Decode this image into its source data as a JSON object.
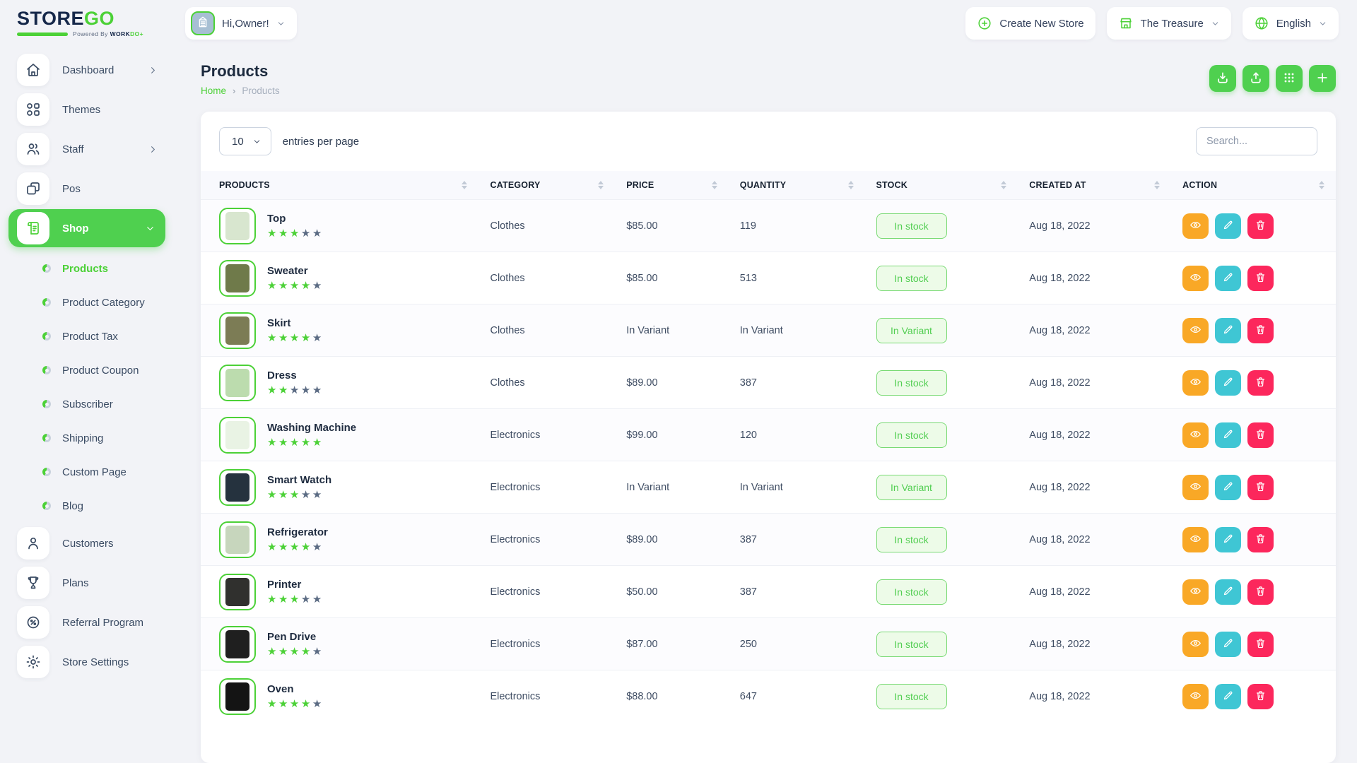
{
  "brand": {
    "logo_primary": "STORE",
    "logo_secondary": "GO",
    "powered_by": "Powered By ",
    "powered_brand_primary": "WORK",
    "powered_brand_secondary": "DO+"
  },
  "header": {
    "greeting": "Hi,Owner!",
    "create_new_store_label": "Create New Store",
    "store_name": "The Treasure",
    "language_label": "English"
  },
  "sidebar": {
    "items_top": [
      {
        "label": "Dashboard",
        "icon": "home-icon",
        "chevron": "right",
        "active": false
      },
      {
        "label": "Themes",
        "icon": "themes-icon",
        "chevron": null,
        "active": false
      },
      {
        "label": "Staff",
        "icon": "staff-icon",
        "chevron": "right",
        "active": false
      },
      {
        "label": "Pos",
        "icon": "pos-icon",
        "chevron": null,
        "active": false
      },
      {
        "label": "Shop",
        "icon": "shop-icon",
        "chevron": "down",
        "active": true,
        "expanded": true
      }
    ],
    "shop_children": [
      {
        "label": "Products",
        "active": true
      },
      {
        "label": "Product Category",
        "active": false
      },
      {
        "label": "Product Tax",
        "active": false
      },
      {
        "label": "Product Coupon",
        "active": false
      },
      {
        "label": "Subscriber",
        "active": false
      },
      {
        "label": "Shipping",
        "active": false
      },
      {
        "label": "Custom Page",
        "active": false
      },
      {
        "label": "Blog",
        "active": false
      }
    ],
    "items_bottom": [
      {
        "label": "Customers",
        "icon": "customers-icon"
      },
      {
        "label": "Plans",
        "icon": "plans-icon"
      },
      {
        "label": "Referral Program",
        "icon": "referral-icon"
      },
      {
        "label": "Store Settings",
        "icon": "gear-icon"
      }
    ]
  },
  "page": {
    "title": "Products",
    "breadcrumb_home": "Home",
    "breadcrumb_current": "Products"
  },
  "toolbar": {
    "buttons": [
      {
        "name": "export-button",
        "icon": "download-icon"
      },
      {
        "name": "import-button",
        "icon": "upload-icon"
      },
      {
        "name": "grid-view-button",
        "icon": "grid-icon"
      },
      {
        "name": "add-product-button",
        "icon": "plus-icon"
      }
    ]
  },
  "controls": {
    "entries_value": "10",
    "entries_label": "entries per page",
    "search_placeholder": "Search..."
  },
  "table": {
    "columns": [
      "PRODUCTS",
      "CATEGORY",
      "PRICE",
      "QUANTITY",
      "STOCK",
      "CREATED AT",
      "ACTION"
    ],
    "rows": [
      {
        "name": "Top",
        "rating": 3,
        "category": "Clothes",
        "price": "$85.00",
        "quantity": "119",
        "stock": "In stock",
        "created_at": "Aug 18, 2022",
        "thumb_color": "#d8e6cf"
      },
      {
        "name": "Sweater",
        "rating": 4,
        "category": "Clothes",
        "price": "$85.00",
        "quantity": "513",
        "stock": "In stock",
        "created_at": "Aug 18, 2022",
        "thumb_color": "#6f7a4a"
      },
      {
        "name": "Skirt",
        "rating": 4,
        "category": "Clothes",
        "price": "In Variant",
        "quantity": "In Variant",
        "stock": "In Variant",
        "created_at": "Aug 18, 2022",
        "thumb_color": "#7c7c55"
      },
      {
        "name": "Dress",
        "rating": 2,
        "category": "Clothes",
        "price": "$89.00",
        "quantity": "387",
        "stock": "In stock",
        "created_at": "Aug 18, 2022",
        "thumb_color": "#bcdcae"
      },
      {
        "name": "Washing Machine",
        "rating": 5,
        "category": "Electronics",
        "price": "$99.00",
        "quantity": "120",
        "stock": "In stock",
        "created_at": "Aug 18, 2022",
        "thumb_color": "#e9f3e4"
      },
      {
        "name": "Smart Watch",
        "rating": 3,
        "category": "Electronics",
        "price": "In Variant",
        "quantity": "In Variant",
        "stock": "In Variant",
        "created_at": "Aug 18, 2022",
        "thumb_color": "#25323e"
      },
      {
        "name": "Refrigerator",
        "rating": 4,
        "category": "Electronics",
        "price": "$89.00",
        "quantity": "387",
        "stock": "In stock",
        "created_at": "Aug 18, 2022",
        "thumb_color": "#c7d6bd"
      },
      {
        "name": "Printer",
        "rating": 3,
        "category": "Electronics",
        "price": "$50.00",
        "quantity": "387",
        "stock": "In stock",
        "created_at": "Aug 18, 2022",
        "thumb_color": "#30302e"
      },
      {
        "name": "Pen Drive",
        "rating": 4,
        "category": "Electronics",
        "price": "$87.00",
        "quantity": "250",
        "stock": "In stock",
        "created_at": "Aug 18, 2022",
        "thumb_color": "#1f1f1f"
      },
      {
        "name": "Oven",
        "rating": 4,
        "category": "Electronics",
        "price": "$88.00",
        "quantity": "647",
        "stock": "In stock",
        "created_at": "Aug 18, 2022",
        "thumb_color": "#141414"
      }
    ],
    "row_actions": [
      {
        "name": "view-button",
        "icon": "eye-icon",
        "color": "#f9a826"
      },
      {
        "name": "edit-button",
        "icon": "pencil-icon",
        "color": "#3fc6d4"
      },
      {
        "name": "delete-button",
        "icon": "trash-icon",
        "color": "#fc275c"
      }
    ]
  },
  "colors": {
    "accent_green": "#4cd137",
    "active_pill_green": "#4fd04f",
    "badge_bg": "#edfbe8",
    "badge_border": "#79da74",
    "badge_text": "#52ce52",
    "star_filled": "#4cd137",
    "star_empty": "#5b6b83",
    "action_view": "#f9a826",
    "action_edit": "#3fc6d4",
    "action_delete": "#fc275c",
    "text_dark": "#1c2a3e",
    "text_muted": "#a6afbd"
  }
}
